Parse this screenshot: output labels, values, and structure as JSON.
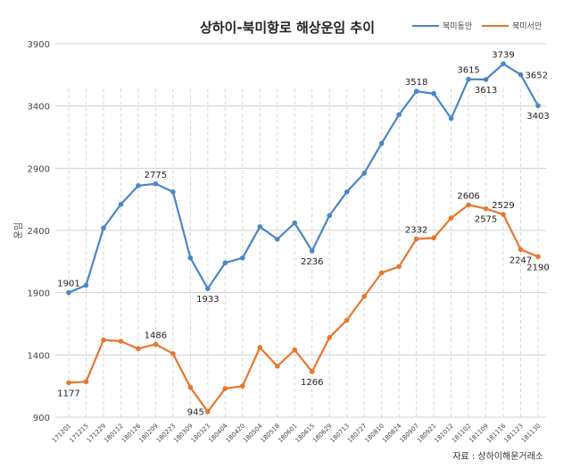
{
  "chart_data": {
    "type": "line",
    "title": "상하이-북미항로 해상운임 추이",
    "ylabel": "운임",
    "xlabel": "",
    "ylim": [
      900,
      3900
    ],
    "yticks": [
      900,
      1400,
      1900,
      2400,
      2900,
      3400,
      3900
    ],
    "ytick_labels": [
      "900",
      "1400",
      "1900",
      "2400",
      "2900",
      "3400",
      "3900"
    ],
    "grid": true,
    "legend_position": "top-right",
    "categories": [
      "171201",
      "171215",
      "171229",
      "180112",
      "180126",
      "180209",
      "180223",
      "180309",
      "180323",
      "180404",
      "180420",
      "180504",
      "180518",
      "180601",
      "180615",
      "180629",
      "180713",
      "180727",
      "180810",
      "180824",
      "180907",
      "180921",
      "181012",
      "181102",
      "181109",
      "181116",
      "181123",
      "181130"
    ],
    "series": [
      {
        "name": "북미동안",
        "color": "#4a86c8",
        "values": [
          1901,
          1960,
          2420,
          2610,
          2760,
          2775,
          2710,
          2180,
          1933,
          2140,
          2180,
          2430,
          2330,
          2460,
          2236,
          2520,
          2710,
          2860,
          3100,
          3330,
          3518,
          3500,
          3300,
          3615,
          3613,
          3739,
          3652,
          3403
        ],
        "labels": [
          {
            "index": 0,
            "text": "1901",
            "pos": "above"
          },
          {
            "index": 5,
            "text": "2775",
            "pos": "above"
          },
          {
            "index": 8,
            "text": "1933",
            "pos": "below"
          },
          {
            "index": 14,
            "text": "2236",
            "pos": "below"
          },
          {
            "index": 20,
            "text": "3518",
            "pos": "above"
          },
          {
            "index": 23,
            "text": "3615",
            "pos": "above"
          },
          {
            "index": 24,
            "text": "3613",
            "pos": "below"
          },
          {
            "index": 25,
            "text": "3739",
            "pos": "above"
          },
          {
            "index": 26,
            "text": "3652",
            "pos": "right"
          },
          {
            "index": 27,
            "text": "3403",
            "pos": "below"
          }
        ]
      },
      {
        "name": "북미서안",
        "color": "#e8762d",
        "values": [
          1177,
          1185,
          1520,
          1510,
          1450,
          1486,
          1410,
          1140,
          945,
          1130,
          1150,
          1460,
          1310,
          1440,
          1266,
          1540,
          1680,
          1870,
          2060,
          2110,
          2332,
          2340,
          2500,
          2606,
          2575,
          2529,
          2247,
          2190
        ],
        "labels": [
          {
            "index": 0,
            "text": "1177",
            "pos": "below"
          },
          {
            "index": 5,
            "text": "1486",
            "pos": "above"
          },
          {
            "index": 8,
            "text": "945",
            "pos": "left"
          },
          {
            "index": 14,
            "text": "1266",
            "pos": "below"
          },
          {
            "index": 20,
            "text": "2332",
            "pos": "above"
          },
          {
            "index": 23,
            "text": "2606",
            "pos": "above"
          },
          {
            "index": 24,
            "text": "2575",
            "pos": "below"
          },
          {
            "index": 25,
            "text": "2529",
            "pos": "above"
          },
          {
            "index": 26,
            "text": "2247",
            "pos": "below"
          },
          {
            "index": 27,
            "text": "2190",
            "pos": "below"
          }
        ]
      }
    ]
  },
  "source_note": "자료 : 상하이해운거래소",
  "colors": {
    "grid": "#d0d0d0",
    "dashed": "#d8d8d8"
  }
}
